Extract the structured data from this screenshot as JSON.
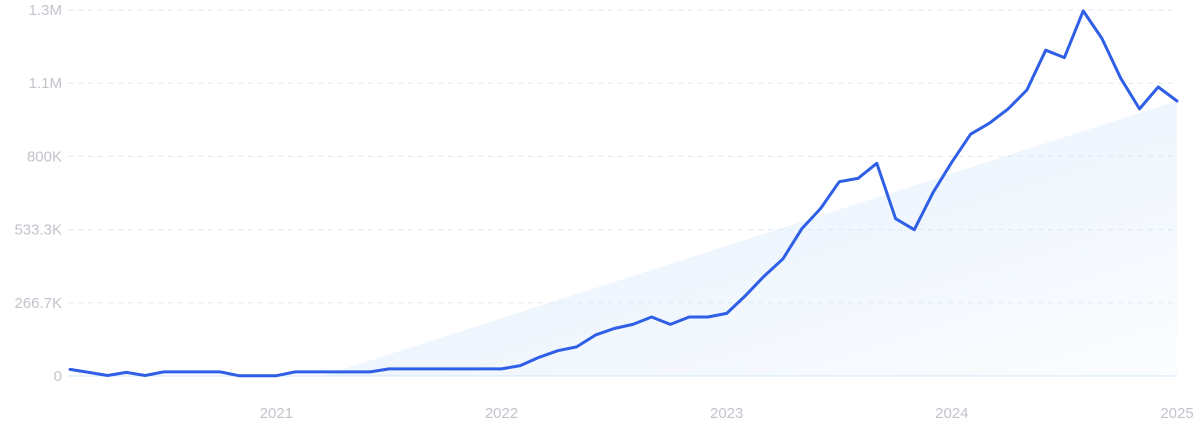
{
  "chart_data": {
    "type": "line",
    "title": "",
    "xlabel": "",
    "ylabel": "",
    "x_start": "2020-02",
    "x_end": "2025-01",
    "x_frequency": "monthly",
    "x_tick_labels": [
      "2021",
      "2022",
      "2023",
      "2024",
      "2025"
    ],
    "y_tick_labels": [
      "0",
      "266.7K",
      "533.3K",
      "800K",
      "1.1M",
      "1.3M"
    ],
    "y_tick_values": [
      0,
      266667,
      533333,
      800000,
      1066667,
      1333333
    ],
    "ylim": [
      0,
      1333333
    ],
    "grid": "horizontal dashed",
    "trend_fill": true,
    "line_color": "#2f5fe6",
    "fill_color": "#e6f0fc",
    "values": [
      24000,
      13000,
      2000,
      13000,
      2000,
      15000,
      15000,
      15000,
      15000,
      1000,
      1000,
      1000,
      15000,
      15000,
      15000,
      15000,
      15000,
      26000,
      26000,
      26000,
      26000,
      26000,
      26000,
      26000,
      38000,
      68000,
      92000,
      106000,
      149000,
      173000,
      188000,
      215000,
      188000,
      215000,
      215000,
      228000,
      293000,
      364000,
      427000,
      536000,
      610000,
      708000,
      720000,
      775000,
      573000,
      533000,
      669000,
      779000,
      881000,
      921000,
      973000,
      1042000,
      1187000,
      1160000,
      1330000,
      1230000,
      1085000,
      973000,
      1053000,
      1002000
    ]
  }
}
